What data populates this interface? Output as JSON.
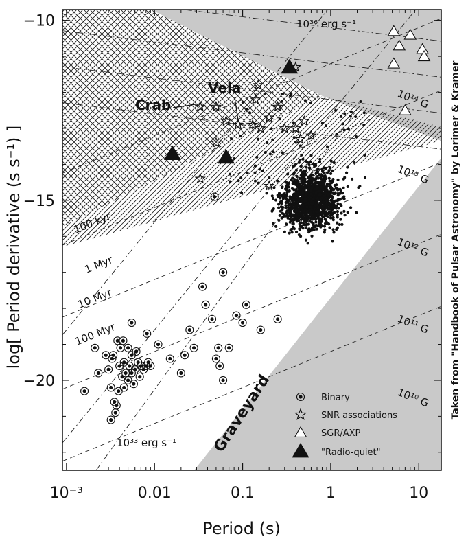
{
  "chart_data": {
    "type": "scatter",
    "xlabel": "Period (s)",
    "ylabel": "log[ Period derivative (s s⁻¹) ]",
    "x_scale": "log",
    "xlim": [
      0.0009,
      18
    ],
    "ylim": [
      -22.5,
      -9.7
    ],
    "x_ticks": [
      {
        "value": 0.001,
        "label": "10⁻³"
      },
      {
        "value": 0.01,
        "label": "0.01"
      },
      {
        "value": 0.1,
        "label": "0.1"
      },
      {
        "value": 1,
        "label": "1"
      },
      {
        "value": 10,
        "label": "10"
      }
    ],
    "y_ticks": [
      {
        "value": -10,
        "label": "−10"
      },
      {
        "value": -15,
        "label": "−15"
      },
      {
        "value": -20,
        "label": "−20"
      }
    ],
    "credit": "Taken from \"Handbook of Pulsar Astronomy\" by Lorimer & Kramer",
    "lines": {
      "spin_down_luminosity": [
        {
          "label": "10³⁶ erg s⁻¹",
          "log_edot": 36
        },
        {
          "label": "10³³ erg s⁻¹",
          "log_edot": 33
        }
      ],
      "magnetic_field": [
        {
          "label": "10¹⁴ G",
          "log_b": 14
        },
        {
          "label": "10¹³ G",
          "log_b": 13
        },
        {
          "label": "10¹² G",
          "log_b": 12
        },
        {
          "label": "10¹¹ G",
          "log_b": 11
        },
        {
          "label": "10¹⁰ G",
          "log_b": 10
        }
      ],
      "characteristic_age": [
        {
          "label": "100 kyr",
          "log_age_yr": 5
        },
        {
          "label": "1 Myr",
          "log_age_yr": 6
        },
        {
          "label": "10 Myr",
          "log_age_yr": 7
        },
        {
          "label": "100 Myr",
          "log_age_yr": 8
        }
      ]
    },
    "regions": {
      "graveyard": "Graveyard"
    },
    "annotations": {
      "crab": {
        "label": "Crab",
        "x": 0.033,
        "y": -12.4
      },
      "vela": {
        "label": "Vela",
        "x": 0.089,
        "y": -12.9
      }
    },
    "legend": {
      "position": "bottom-right",
      "entries": [
        {
          "label": "Binary",
          "marker": "circled-dot"
        },
        {
          "label": "SNR associations",
          "marker": "star"
        },
        {
          "label": "SGR/AXP",
          "marker": "open-triangle"
        },
        {
          "label": "\"Radio-quiet\"",
          "marker": "filled-triangle"
        }
      ]
    },
    "series": [
      {
        "name": "SNR associations",
        "marker": "star",
        "points": [
          [
            0.033,
            -12.4
          ],
          [
            0.05,
            -12.4
          ],
          [
            0.065,
            -12.8
          ],
          [
            0.089,
            -12.9
          ],
          [
            0.13,
            -12.9
          ],
          [
            0.05,
            -13.4
          ],
          [
            0.15,
            -11.8
          ],
          [
            0.2,
            -12.7
          ],
          [
            0.25,
            -12.4
          ],
          [
            0.16,
            -13.0
          ],
          [
            0.14,
            -12.2
          ],
          [
            0.3,
            -13.0
          ],
          [
            0.4,
            -13.0
          ],
          [
            0.5,
            -12.8
          ],
          [
            0.45,
            -13.3
          ],
          [
            0.6,
            -13.2
          ],
          [
            0.033,
            -14.4
          ],
          [
            0.2,
            -14.6
          ],
          [
            0.4,
            -11.3
          ]
        ]
      },
      {
        "name": "SGR/AXP",
        "marker": "open-triangle",
        "points": [
          [
            5.2,
            -10.3
          ],
          [
            8,
            -10.4
          ],
          [
            11,
            -10.8
          ],
          [
            6,
            -10.7
          ],
          [
            5.2,
            -11.2
          ],
          [
            11.5,
            -11.0
          ],
          [
            7,
            -12.5
          ]
        ]
      },
      {
        "name": "Radio-quiet",
        "marker": "filled-triangle",
        "points": [
          [
            0.016,
            -13.7
          ],
          [
            0.065,
            -13.8
          ],
          [
            0.34,
            -11.3
          ]
        ]
      },
      {
        "name": "Binary",
        "marker": "circled-dot",
        "points": [
          [
            0.0016,
            -20.3
          ],
          [
            0.0023,
            -19.8
          ],
          [
            0.0021,
            -19.1
          ],
          [
            0.0028,
            -19.3
          ],
          [
            0.003,
            -19.7
          ],
          [
            0.0032,
            -20.2
          ],
          [
            0.0035,
            -20.6
          ],
          [
            0.0036,
            -20.9
          ],
          [
            0.0037,
            -20.7
          ],
          [
            0.0032,
            -21.1
          ],
          [
            0.0039,
            -20.3
          ],
          [
            0.004,
            -19.6
          ],
          [
            0.0041,
            -19.1
          ],
          [
            0.0043,
            -19.9
          ],
          [
            0.0045,
            -20.2
          ],
          [
            0.0047,
            -19.8
          ],
          [
            0.005,
            -20.0
          ],
          [
            0.0052,
            -19.6
          ],
          [
            0.0055,
            -19.8
          ],
          [
            0.006,
            -19.7
          ],
          [
            0.0065,
            -19.5
          ],
          [
            0.007,
            -19.6
          ],
          [
            0.0075,
            -19.7
          ],
          [
            0.008,
            -19.6
          ],
          [
            0.0085,
            -19.5
          ],
          [
            0.009,
            -19.6
          ],
          [
            0.0034,
            -19.3
          ],
          [
            0.0044,
            -18.9
          ],
          [
            0.005,
            -19.1
          ],
          [
            0.0055,
            -19.3
          ],
          [
            0.0062,
            -19.2
          ],
          [
            0.0045,
            -19.5
          ],
          [
            0.0038,
            -18.9
          ],
          [
            0.0033,
            -19.4
          ],
          [
            0.0055,
            -18.4
          ],
          [
            0.0058,
            -20.1
          ],
          [
            0.0068,
            -19.9
          ],
          [
            0.0082,
            -18.7
          ],
          [
            0.011,
            -19.0
          ],
          [
            0.015,
            -19.4
          ],
          [
            0.02,
            -19.8
          ],
          [
            0.022,
            -19.3
          ],
          [
            0.025,
            -18.6
          ],
          [
            0.028,
            -19.1
          ],
          [
            0.035,
            -17.4
          ],
          [
            0.038,
            -17.9
          ],
          [
            0.045,
            -18.3
          ],
          [
            0.05,
            -19.4
          ],
          [
            0.053,
            -19.1
          ],
          [
            0.055,
            -19.6
          ],
          [
            0.07,
            -19.1
          ],
          [
            0.06,
            -17.0
          ],
          [
            0.085,
            -18.2
          ],
          [
            0.11,
            -17.9
          ],
          [
            0.1,
            -18.4
          ],
          [
            0.16,
            -18.6
          ],
          [
            0.25,
            -18.3
          ],
          [
            0.06,
            -20.0
          ],
          [
            0.048,
            -14.9
          ]
        ]
      }
    ],
    "dense_cluster": {
      "description_free": true,
      "center": [
        0.6,
        -15.0
      ],
      "count_drawn": 1300
    }
  }
}
